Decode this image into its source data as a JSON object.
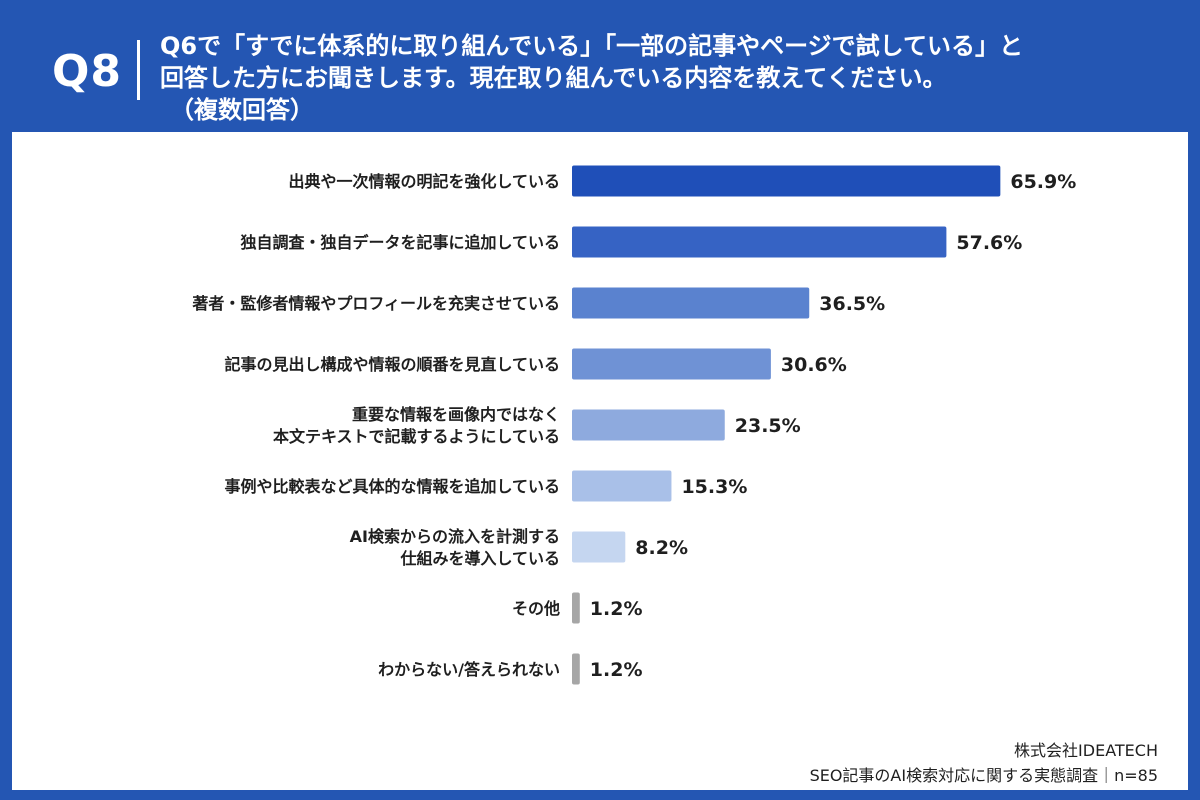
{
  "header": {
    "qnum": "Q8",
    "line1": "Q6で「すでに体系的に取り組んでいる」「一部の記事やページで試している」と",
    "line2": "回答した方にお聞きします。現在取り組んでいる内容を教えてください。",
    "line3": "（複数回答）"
  },
  "footer": {
    "company": "株式会社IDEATECH",
    "survey": "SEO記事のAI検索対応に関する実態調査｜n=85"
  },
  "colors": [
    "#1f4fb8",
    "#3663c4",
    "#5a82cf",
    "#6f92d5",
    "#8eaade",
    "#a9c0e8",
    "#c5d6f0",
    "#a6a6a6",
    "#a6a6a6"
  ],
  "chart_data": {
    "type": "bar",
    "orientation": "horizontal",
    "unit": "%",
    "xlim": [
      0,
      100
    ],
    "grid": false,
    "categories": [
      [
        "出典や一次情報の明記を強化している"
      ],
      [
        "独自調査・独自データを記事に追加している"
      ],
      [
        "著者・監修者情報やプロフィールを充実させている"
      ],
      [
        "記事の見出し構成や情報の順番を見直している"
      ],
      [
        "重要な情報を画像内ではなく",
        "本文テキストで記載するようにしている"
      ],
      [
        "事例や比較表など具体的な情報を追加している"
      ],
      [
        "AI検索からの流入を計測する",
        "仕組みを導入している"
      ],
      [
        "その他"
      ],
      [
        "わからない/答えられない"
      ]
    ],
    "values": [
      65.9,
      57.6,
      36.5,
      30.6,
      23.5,
      15.3,
      8.2,
      1.2,
      1.2
    ],
    "value_labels": [
      "65.9%",
      "57.6%",
      "36.5%",
      "30.6%",
      "23.5%",
      "15.3%",
      "8.2%",
      "1.2%",
      "1.2%"
    ]
  }
}
